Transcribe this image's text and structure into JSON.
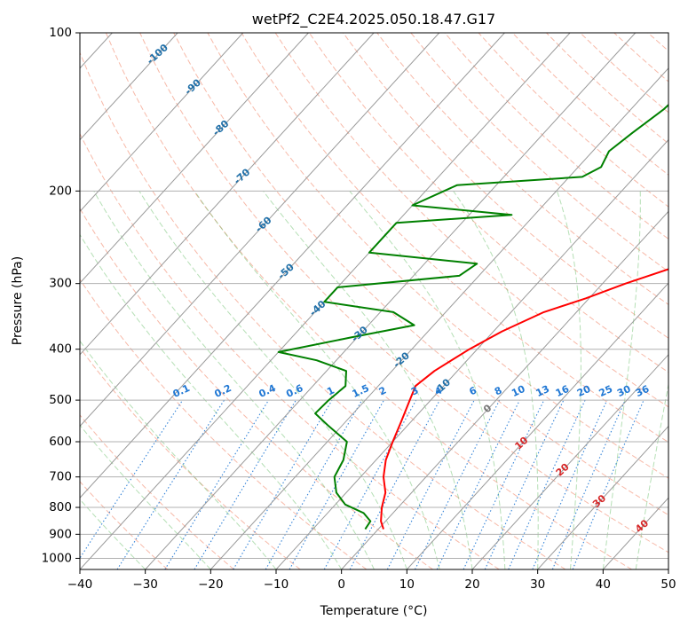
{
  "chart_data": {
    "type": "line",
    "diagram": "skew-t log-p",
    "title": "wetPf2_C2E4.2025.050.18.47.G17",
    "xlabel": "Temperature (°C)",
    "ylabel": "Pressure (hPa)",
    "xlim": [
      -40,
      50
    ],
    "ylim": [
      1050,
      100
    ],
    "y_scale": "log",
    "x_ticks": [
      -40,
      -30,
      -20,
      -10,
      0,
      10,
      20,
      30,
      40,
      50
    ],
    "y_ticks": [
      100,
      200,
      300,
      400,
      500,
      600,
      700,
      800,
      900,
      1000
    ],
    "grid": true,
    "colors": {
      "temperature": "#ff0000",
      "dewpoint": "#008000",
      "mixing_ratio": "#1f77d4",
      "dry_adiabat": "#f08060",
      "moist_adiabat": "#5cb85c",
      "isotherm": "#888888",
      "isotherm_label": "#1f6fa8",
      "positive_isotherm_label": "#d62728"
    },
    "series": [
      {
        "name": "Temperature",
        "points": [
          {
            "p": 880,
            "t": 0.8
          },
          {
            "p": 850,
            "t": -0.7
          },
          {
            "p": 800,
            "t": -2.5
          },
          {
            "p": 750,
            "t": -4.0
          },
          {
            "p": 700,
            "t": -6.5
          },
          {
            "p": 650,
            "t": -8.5
          },
          {
            "p": 600,
            "t": -10.0
          },
          {
            "p": 550,
            "t": -11.5
          },
          {
            "p": 500,
            "t": -13.2
          },
          {
            "p": 470,
            "t": -14.3
          },
          {
            "p": 440,
            "t": -13.5
          },
          {
            "p": 400,
            "t": -11.2
          },
          {
            "p": 370,
            "t": -8.7
          },
          {
            "p": 340,
            "t": -5.0
          },
          {
            "p": 320,
            "t": -0.5
          },
          {
            "p": 300,
            "t": 3.5
          },
          {
            "p": 280,
            "t": 8.5
          },
          {
            "p": 260,
            "t": 14.0
          },
          {
            "p": 240,
            "t": 16.8
          },
          {
            "p": 220,
            "t": 18.5
          },
          {
            "p": 200,
            "t": 20.7
          },
          {
            "p": 180,
            "t": 21.5
          },
          {
            "p": 160,
            "t": 22.5
          },
          {
            "p": 140,
            "t": 22.6
          },
          {
            "p": 125,
            "t": 23.8
          },
          {
            "p": 110,
            "t": 25.5
          },
          {
            "p": 100,
            "t": 27.5
          }
        ]
      },
      {
        "name": "Dewpoint",
        "points": [
          {
            "p": 880,
            "t": -2.0
          },
          {
            "p": 850,
            "t": -2.3
          },
          {
            "p": 820,
            "t": -4.5
          },
          {
            "p": 790,
            "t": -8.5
          },
          {
            "p": 750,
            "t": -11.5
          },
          {
            "p": 700,
            "t": -14.0
          },
          {
            "p": 650,
            "t": -15.0
          },
          {
            "p": 600,
            "t": -17.0
          },
          {
            "p": 560,
            "t": -22.0
          },
          {
            "p": 530,
            "t": -25.8
          },
          {
            "p": 500,
            "t": -25.6
          },
          {
            "p": 470,
            "t": -25.0
          },
          {
            "p": 440,
            "t": -27.0
          },
          {
            "p": 420,
            "t": -33.0
          },
          {
            "p": 405,
            "t": -40.0
          },
          {
            "p": 380,
            "t": -31.0
          },
          {
            "p": 360,
            "t": -23.0
          },
          {
            "p": 340,
            "t": -28.0
          },
          {
            "p": 325,
            "t": -40.0
          },
          {
            "p": 305,
            "t": -40.0
          },
          {
            "p": 290,
            "t": -23.0
          },
          {
            "p": 275,
            "t": -22.0
          },
          {
            "p": 262,
            "t": -40.0
          },
          {
            "p": 230,
            "t": -40.0
          },
          {
            "p": 222,
            "t": -23.5
          },
          {
            "p": 213,
            "t": -40.0
          },
          {
            "p": 195,
            "t": -36.0
          },
          {
            "p": 188,
            "t": -18.0
          },
          {
            "p": 180,
            "t": -16.5
          },
          {
            "p": 168,
            "t": -17.5
          },
          {
            "p": 155,
            "t": -16.5
          },
          {
            "p": 140,
            "t": -15.0
          },
          {
            "p": 128,
            "t": -14.5
          },
          {
            "p": 118,
            "t": -16.5
          },
          {
            "p": 110,
            "t": -16.0
          },
          {
            "p": 100,
            "t": -12.5
          }
        ]
      }
    ],
    "isotherm_labels": [
      -100,
      -90,
      -80,
      -70,
      -60,
      -50,
      -40,
      -30,
      -20,
      -10,
      0,
      10,
      20,
      30,
      40
    ],
    "mixing_ratio_labels": [
      "0.1",
      "0.2",
      "0.4",
      "0.6",
      "1",
      "1.5",
      "2",
      "3",
      "4",
      "6",
      "8",
      "10",
      "13",
      "16",
      "20",
      "25",
      "30",
      "36"
    ]
  }
}
